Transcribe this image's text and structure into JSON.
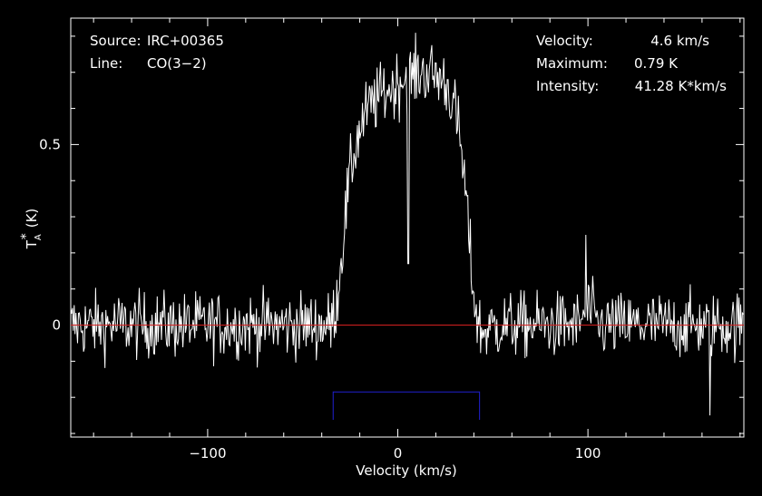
{
  "chart_data": {
    "type": "line",
    "xlabel": "Velocity (km/s)",
    "ylabel_main": "T",
    "ylabel_sub": "A",
    "ylabel_sup": "*",
    "ylabel_unit": "(K)",
    "xlim": [
      -172,
      182
    ],
    "ylim": [
      -0.31,
      0.85
    ],
    "x_ticks": [
      -100,
      0,
      100
    ],
    "y_ticks": [
      0,
      0.5
    ],
    "x_tick_labels": [
      "−100",
      "0",
      "100"
    ],
    "y_tick_labels": [
      "0",
      "0.5"
    ],
    "baseline_y": 0,
    "window": [
      -34,
      43
    ],
    "window_level": -0.185,
    "info_left": [
      {
        "key": "Source:",
        "value": "IRC+00365"
      },
      {
        "key": "Line:",
        "value": "CO(3−2)"
      }
    ],
    "info_right": [
      {
        "key": "Velocity:",
        "value": "4.6 km/s"
      },
      {
        "key": "Maximum:",
        "value": "0.79 K"
      },
      {
        "key": "Intensity:",
        "value": "41.28 K*km/s"
      }
    ],
    "series": [
      {
        "x": [
          -172,
          -160,
          -150,
          -140,
          -130,
          -120,
          -110,
          -100,
          -90,
          -80,
          -70,
          -60,
          -50,
          -40,
          -35,
          -32,
          -30,
          -28,
          -26,
          -24,
          -22,
          -20,
          -17,
          -14,
          -10,
          -6,
          -2,
          0,
          2,
          5,
          8,
          12,
          16,
          20,
          24,
          27,
          30,
          33,
          36,
          38,
          40,
          42,
          44,
          48,
          55,
          65,
          75,
          85,
          95,
          100,
          105,
          115,
          125,
          135,
          145,
          155,
          165,
          175,
          182
        ],
        "values": [
          0,
          0,
          0,
          0,
          0,
          0,
          0,
          0,
          0,
          0,
          0,
          0,
          0,
          0,
          0,
          0.07,
          0.17,
          0.28,
          0.38,
          0.45,
          0.5,
          0.54,
          0.58,
          0.61,
          0.63,
          0.65,
          0.66,
          0.67,
          0.68,
          0.69,
          0.69,
          0.7,
          0.7,
          0.69,
          0.68,
          0.65,
          0.6,
          0.5,
          0.35,
          0.2,
          0.08,
          0.01,
          -0.02,
          -0.01,
          0,
          0,
          0,
          0,
          0,
          0.05,
          0,
          0,
          0,
          0,
          0,
          0,
          0,
          0,
          0
        ],
        "noise_rms": 0.045,
        "features": [
          {
            "x": 5.5,
            "y": 0.17
          },
          {
            "x": 99,
            "y": 0.25
          },
          {
            "x": 164,
            "y": -0.25
          }
        ]
      }
    ]
  },
  "colors": {
    "background": "#000000",
    "axes": "#ffffff",
    "spectrum": "#ffffff",
    "baseline": "#d42020",
    "window": "#2020d0"
  }
}
